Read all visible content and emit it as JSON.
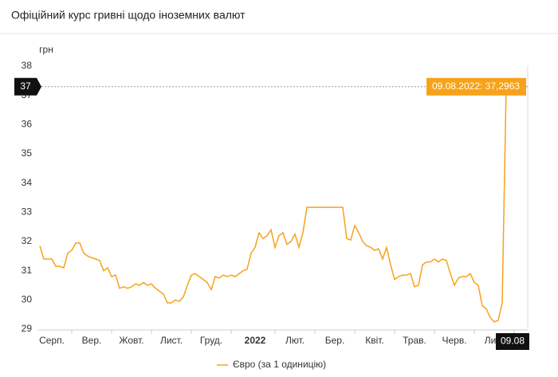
{
  "chart_data": {
    "type": "line",
    "title": "Офіційний курс гривні щодо іноземних валют",
    "y_label": "грн",
    "ylim": [
      29,
      38
    ],
    "yticks": [
      29,
      30,
      31,
      32,
      33,
      34,
      35,
      36,
      37,
      38
    ],
    "xlim": [
      0,
      122
    ],
    "xticks": [
      {
        "value": 3,
        "label": "Серп."
      },
      {
        "value": 13,
        "label": "Вер."
      },
      {
        "value": 23,
        "label": "Жовт."
      },
      {
        "value": 33,
        "label": "Лист."
      },
      {
        "value": 43,
        "label": "Груд."
      },
      {
        "value": 54,
        "label": "2022"
      },
      {
        "value": 64,
        "label": "Лют."
      },
      {
        "value": 74,
        "label": "Бер."
      },
      {
        "value": 84,
        "label": "Квіт."
      },
      {
        "value": 94,
        "label": "Трав."
      },
      {
        "value": 104,
        "label": "Черв."
      },
      {
        "value": 114,
        "label": "Лип."
      }
    ],
    "series": [
      {
        "name": "Євро (за 1 одиницію)",
        "color": "#f7a21b",
        "values": [
          31.85,
          31.4,
          31.4,
          31.4,
          31.15,
          31.15,
          31.1,
          31.6,
          31.7,
          31.95,
          31.95,
          31.6,
          31.5,
          31.45,
          31.4,
          31.35,
          31.0,
          31.1,
          30.8,
          30.85,
          30.4,
          30.45,
          30.4,
          30.45,
          30.55,
          30.5,
          30.6,
          30.5,
          30.55,
          30.4,
          30.3,
          30.2,
          29.9,
          29.9,
          30.0,
          29.95,
          30.1,
          30.5,
          30.85,
          30.9,
          30.8,
          30.7,
          30.6,
          30.35,
          30.8,
          30.75,
          30.85,
          30.8,
          30.85,
          30.8,
          30.9,
          31.0,
          31.05,
          31.6,
          31.8,
          32.3,
          32.1,
          32.2,
          32.4,
          31.8,
          32.2,
          32.3,
          31.9,
          32.0,
          32.25,
          31.8,
          32.3,
          33.17,
          33.17,
          33.17,
          33.17,
          33.17,
          33.17,
          33.17,
          33.17,
          33.17,
          33.17,
          32.1,
          32.05,
          32.55,
          32.3,
          32.0,
          31.85,
          31.8,
          31.7,
          31.75,
          31.4,
          31.8,
          31.2,
          30.7,
          30.8,
          30.85,
          30.85,
          30.9,
          30.45,
          30.5,
          31.2,
          31.3,
          31.3,
          31.4,
          31.3,
          31.4,
          31.35,
          30.9,
          30.5,
          30.75,
          30.8,
          30.8,
          30.9,
          30.6,
          30.5,
          29.8,
          29.7,
          29.4,
          29.25,
          29.3,
          29.9,
          37.2963
        ]
      }
    ],
    "tooltip": {
      "text": "09.08.2022: 37,2963",
      "y_label": "37",
      "x_label": "09.08"
    }
  }
}
